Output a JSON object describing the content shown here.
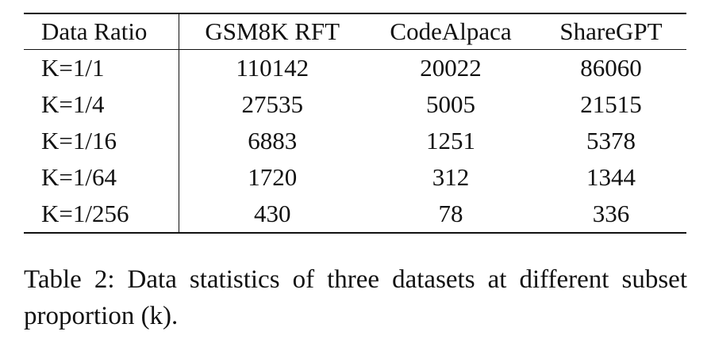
{
  "table": {
    "header": [
      "Data Ratio",
      "GSM8K RFT",
      "CodeAlpaca",
      "ShareGPT"
    ],
    "rows": [
      [
        "K=1/1",
        110142,
        20022,
        86060
      ],
      [
        "K=1/4",
        27535,
        5005,
        21515
      ],
      [
        "K=1/16",
        6883,
        1251,
        5378
      ],
      [
        "K=1/64",
        1720,
        312,
        1344
      ],
      [
        "K=1/256",
        430,
        78,
        336
      ]
    ]
  },
  "caption": "Table 2: Data statistics of three datasets at different subset proportion (k)."
}
